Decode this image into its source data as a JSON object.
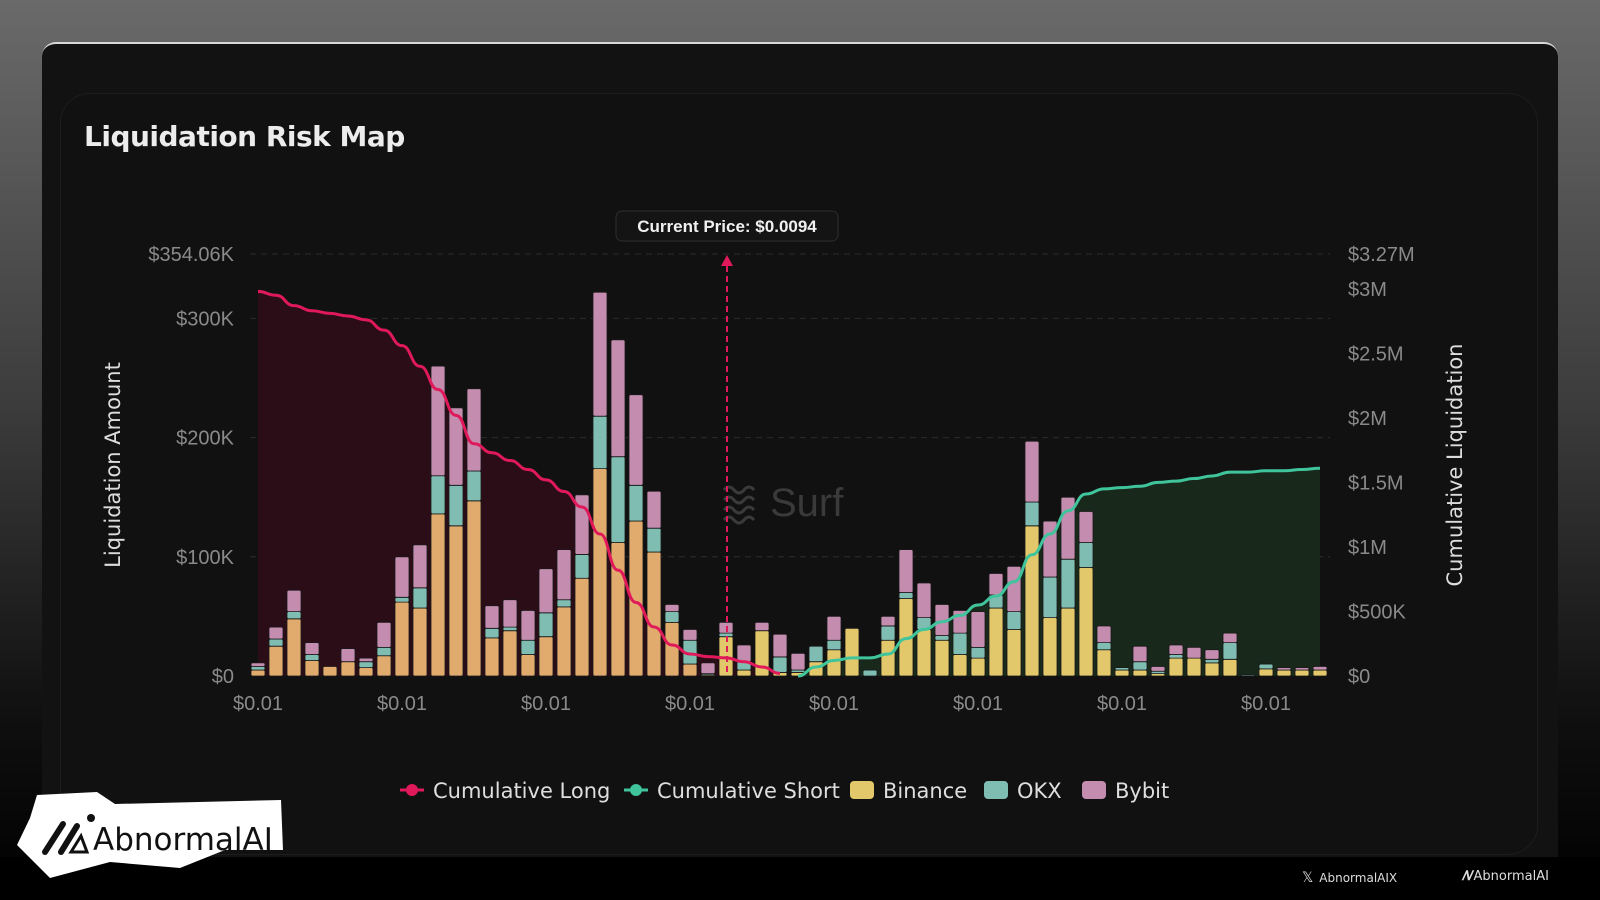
{
  "window": {
    "title": "Liquidation Risk Map"
  },
  "tooltip": {
    "current_price_label": "Current Price: $0.0094"
  },
  "watermark": {
    "text": "Surf"
  },
  "legend": [
    {
      "label": "Cumulative Long",
      "color": "#e0195a"
    },
    {
      "label": "Cumulative Short",
      "color": "#3fc49c"
    },
    {
      "label": "Binance",
      "color": "#e2c86a"
    },
    {
      "label": "OKX",
      "color": "#7fbdb2"
    },
    {
      "label": "Bybit",
      "color": "#c48db0"
    }
  ],
  "branding": {
    "badge_logo_text": "AbnormalAI",
    "footer_x_handle": "AbnormalAIX",
    "footer_logo_text": "AbnormalAI"
  },
  "chart_data": {
    "type": "bar",
    "title": "Liquidation Risk Map",
    "xlabel": "",
    "ylabel": "Liquidation Amount",
    "y2label": "Cumulative Liquidation",
    "ylim": [
      0,
      354.06
    ],
    "y2lim": [
      0,
      3.27
    ],
    "y_ticks": [
      "$0",
      "$100K",
      "$200K",
      "$300K",
      "$354.06K"
    ],
    "y_tick_values": [
      0,
      100,
      200,
      300,
      354.06
    ],
    "y2_ticks": [
      "$0",
      "$500K",
      "$1M",
      "$1.5M",
      "$2M",
      "$2.5M",
      "$3M",
      "$3.27M"
    ],
    "y2_tick_values": [
      0,
      0.5,
      1,
      1.5,
      2,
      2.5,
      3,
      3.27
    ],
    "x_ticks": [
      "$0.01",
      "$0.01",
      "$0.01",
      "$0.01",
      "$0.01",
      "$0.01",
      "$0.01",
      "$0.01"
    ],
    "x_tick_indices": [
      0,
      8,
      16,
      24,
      32,
      40,
      48,
      56
    ],
    "current_price_index": 26,
    "grid": true,
    "legend_position": "bottom",
    "units": "bars in $K, cumulative in $M",
    "series": [
      {
        "name": "Binance",
        "values": [
          5,
          25,
          48,
          13,
          8,
          12,
          7,
          17,
          62,
          57,
          136,
          126,
          147,
          32,
          38,
          18,
          33,
          58,
          82,
          174,
          112,
          130,
          104,
          45,
          10,
          1,
          33,
          5,
          38,
          3,
          3,
          12,
          22,
          40,
          0,
          30,
          65,
          39,
          30,
          18,
          15,
          57,
          39,
          126,
          49,
          57,
          91,
          22,
          5,
          5,
          2,
          15,
          15,
          11,
          14,
          0,
          6,
          5,
          5,
          5
        ]
      },
      {
        "name": "OKX",
        "values": [
          3,
          6,
          6,
          5,
          0,
          0,
          5,
          7,
          4,
          17,
          32,
          34,
          25,
          8,
          3,
          12,
          20,
          6,
          20,
          44,
          72,
          30,
          20,
          9,
          20,
          1,
          3,
          7,
          0,
          13,
          2,
          13,
          8,
          0,
          5,
          12,
          5,
          10,
          4,
          18,
          9,
          11,
          15,
          20,
          34,
          41,
          21,
          6,
          2,
          7,
          2,
          3,
          0,
          3,
          14,
          1,
          4,
          0,
          0,
          0
        ]
      },
      {
        "name": "Bybit",
        "values": [
          3,
          10,
          18,
          10,
          0,
          11,
          3,
          21,
          34,
          36,
          92,
          65,
          69,
          19,
          23,
          25,
          37,
          42,
          50,
          104,
          98,
          76,
          31,
          6,
          9,
          9,
          9,
          14,
          7,
          19,
          14,
          0,
          20,
          0,
          0,
          8,
          36,
          29,
          26,
          19,
          30,
          18,
          38,
          51,
          47,
          52,
          26,
          14,
          0,
          13,
          4,
          8,
          9,
          8,
          8,
          0,
          0,
          2,
          2,
          3
        ]
      }
    ],
    "cumulative_long": {
      "name": "Cumulative Long",
      "values_musd": [
        2.98,
        2.95,
        2.87,
        2.83,
        2.81,
        2.79,
        2.76,
        2.68,
        2.56,
        2.4,
        2.22,
        2.02,
        1.8,
        1.73,
        1.67,
        1.6,
        1.52,
        1.43,
        1.31,
        1.1,
        0.82,
        0.57,
        0.38,
        0.24,
        0.17,
        0.15,
        0.14,
        0.11,
        0.07,
        0.02
      ]
    },
    "cumulative_short": {
      "name": "Cumulative Short",
      "start_index": 30,
      "values_musd": [
        0.0,
        0.07,
        0.12,
        0.14,
        0.14,
        0.17,
        0.29,
        0.36,
        0.42,
        0.47,
        0.55,
        0.62,
        0.73,
        0.94,
        1.1,
        1.28,
        1.41,
        1.45,
        1.46,
        1.47,
        1.5,
        1.51,
        1.53,
        1.55,
        1.58,
        1.58,
        1.59,
        1.59,
        1.6,
        1.61
      ]
    }
  }
}
